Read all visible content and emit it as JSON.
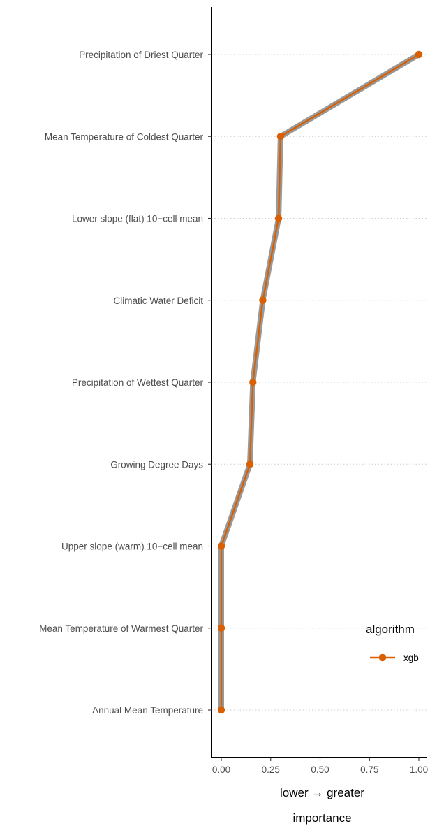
{
  "chart_data": {
    "type": "line",
    "orientation": "horizontal",
    "categories": [
      "Precipitation of Driest Quarter",
      "Mean Temperature of Coldest Quarter",
      "Lower slope (flat) 10−cell mean",
      "Climatic Water Deficit",
      "Precipitation of Wettest Quarter",
      "Growing Degree Days",
      "Upper slope (warm) 10−cell mean",
      "Mean Temperature of Warmest Quarter",
      "Annual Mean Temperature"
    ],
    "series": [
      {
        "name": "xgb",
        "values": [
          1.0,
          0.3,
          0.29,
          0.21,
          0.16,
          0.145,
          0.0,
          0.0,
          0.0
        ]
      }
    ],
    "xlim": [
      -0.05,
      1.05
    ],
    "x_ticks": [
      "0.00",
      "0.25",
      "0.50",
      "0.75",
      "1.00"
    ],
    "x_tick_values": [
      0,
      0.25,
      0.5,
      0.75,
      1.0
    ],
    "xlabel_line1": "lower → greater",
    "xlabel_line2": "importance",
    "legend": {
      "title": "algorithm",
      "position": "right"
    },
    "grid": "dotted horizontal",
    "colors": {
      "line": "#d95f02",
      "shadow": "#999999",
      "grid": "#cccccc",
      "axis": "#000000"
    }
  }
}
